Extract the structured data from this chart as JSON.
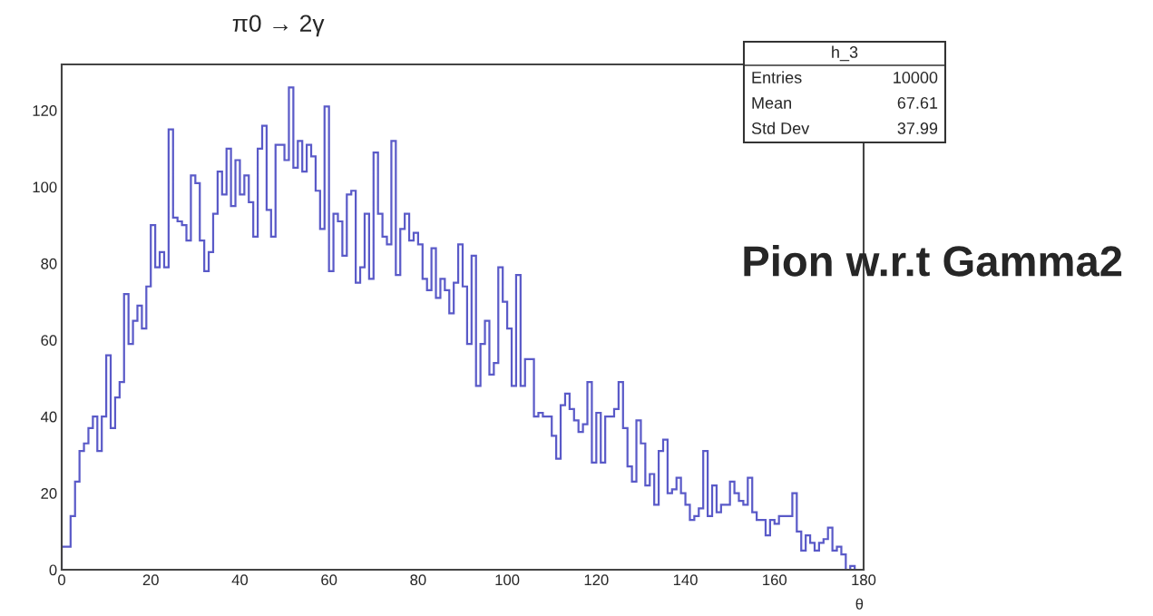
{
  "chart_data": {
    "type": "histogram",
    "title": "π0 → 2γ",
    "xlabel": "θ",
    "color": "#5a5ac8",
    "bins": [
      0,
      1,
      2,
      3,
      4,
      5,
      6,
      7,
      8,
      9,
      10,
      11,
      12,
      13,
      14,
      15,
      16,
      17,
      18,
      19,
      20,
      21,
      22,
      23,
      24,
      25,
      26,
      27,
      28,
      29,
      30,
      31,
      32,
      33,
      34,
      35,
      36,
      37,
      38,
      39,
      40,
      41,
      42,
      43,
      44,
      45,
      46,
      47,
      48,
      49,
      50,
      51,
      52,
      53,
      54,
      55,
      56,
      57,
      58,
      59,
      60,
      61,
      62,
      63,
      64,
      65,
      66,
      67,
      68,
      69,
      70,
      71,
      72,
      73,
      74,
      75,
      76,
      77,
      78,
      79,
      80,
      81,
      82,
      83,
      84,
      85,
      86,
      87,
      88,
      89,
      90,
      91,
      92,
      93,
      94,
      95,
      96,
      97,
      98,
      99,
      100,
      101,
      102,
      103,
      104,
      105,
      106,
      107,
      108,
      109,
      110,
      111,
      112,
      113,
      114,
      115,
      116,
      117,
      118,
      119,
      120,
      121,
      122,
      123,
      124,
      125,
      126,
      127,
      128,
      129,
      130,
      131,
      132,
      133,
      134,
      135,
      136,
      137,
      138,
      139,
      140,
      141,
      142,
      143,
      144,
      145,
      146,
      147,
      148,
      149,
      150,
      151,
      152,
      153,
      154,
      155,
      156,
      157,
      158,
      159,
      160,
      161,
      162,
      163,
      164,
      165,
      166,
      167,
      168,
      169,
      170,
      171,
      172,
      173,
      174,
      175,
      176,
      177,
      178,
      179,
      180
    ],
    "values": [
      6,
      6,
      14,
      23,
      31,
      33,
      37,
      40,
      31,
      40,
      56,
      37,
      45,
      49,
      72,
      59,
      65,
      69,
      63,
      74,
      90,
      79,
      83,
      79,
      115,
      92,
      91,
      90,
      86,
      103,
      101,
      86,
      78,
      83,
      93,
      104,
      98,
      110,
      95,
      107,
      98,
      103,
      96,
      87,
      110,
      116,
      94,
      87,
      111,
      111,
      107,
      126,
      105,
      112,
      104,
      111,
      108,
      99,
      89,
      121,
      78,
      93,
      91,
      82,
      98,
      99,
      75,
      79,
      93,
      76,
      109,
      93,
      87,
      85,
      112,
      77,
      89,
      93,
      86,
      88,
      85,
      76,
      73,
      84,
      71,
      76,
      73,
      67,
      75,
      85,
      74,
      59,
      82,
      48,
      59,
      65,
      51,
      54,
      79,
      70,
      63,
      48,
      77,
      48,
      55,
      55,
      40,
      41,
      40,
      40,
      35,
      29,
      43,
      46,
      42,
      39,
      36,
      38,
      49,
      28,
      41,
      28,
      40,
      40,
      42,
      49,
      37,
      27,
      23,
      39,
      33,
      22,
      25,
      17,
      31,
      34,
      20,
      21,
      24,
      20,
      17,
      13,
      14,
      16,
      31,
      14,
      22,
      15,
      17,
      17,
      23,
      20,
      18,
      17,
      24,
      15,
      13,
      13,
      9,
      13,
      12,
      14,
      14,
      14,
      20,
      10,
      5,
      9,
      7,
      5,
      7,
      8,
      11,
      5,
      6,
      4,
      0,
      1,
      0,
      0
    ],
    "xlim": [
      0,
      180
    ],
    "xticks": [
      0,
      20,
      40,
      60,
      80,
      100,
      120,
      140,
      160,
      180
    ],
    "ylim": [
      0,
      132
    ],
    "yticks": [
      0,
      20,
      40,
      60,
      80,
      100,
      120
    ],
    "grid": false,
    "legend": false,
    "annotations": [
      "h_3",
      "Entries",
      "10000",
      "Mean",
      "67.61",
      "Std Dev",
      "37.99",
      "Pion w.r.t Gamma2"
    ]
  }
}
